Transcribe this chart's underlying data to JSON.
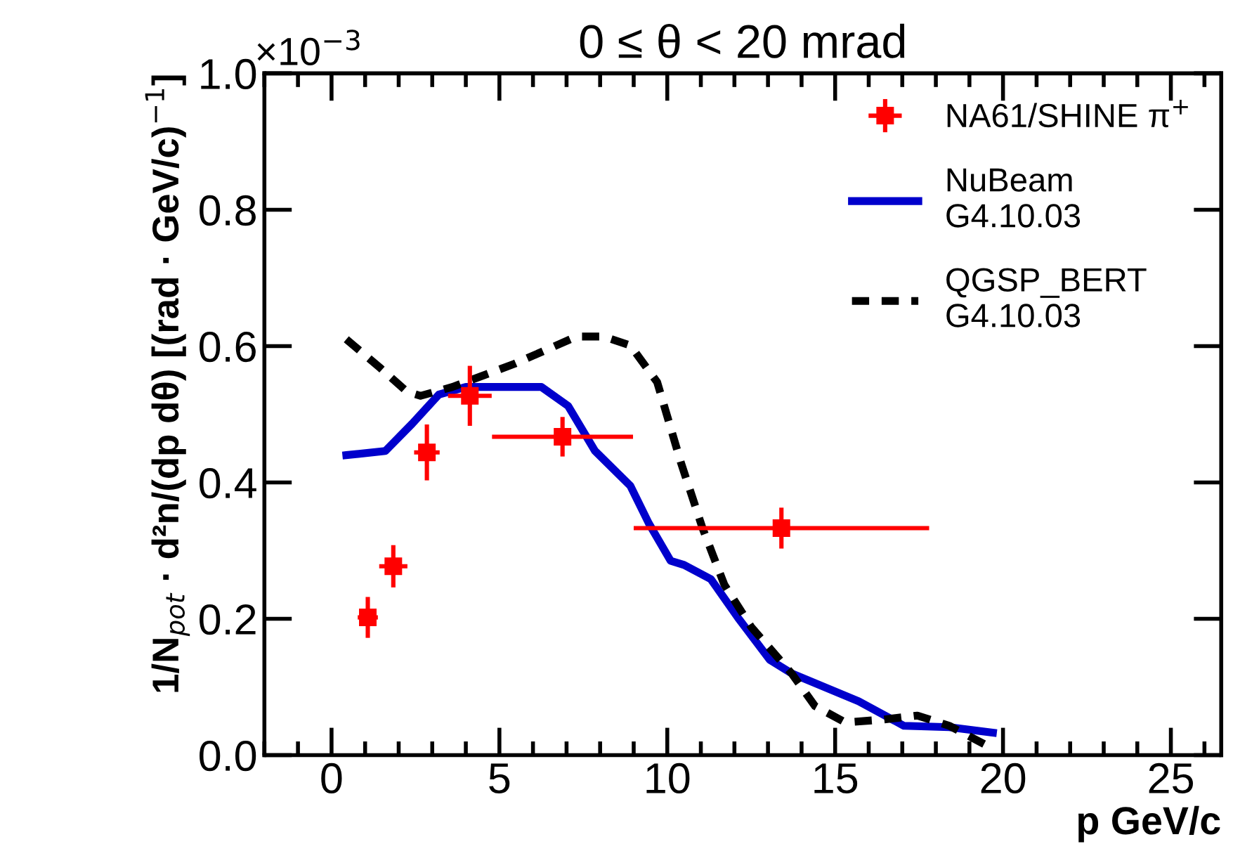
{
  "chart_data": {
    "type": "line",
    "title": "0 ≤ θ < 20 mrad",
    "xlabel": "p GeV/c",
    "ylabel": "1/N$_{pot}$ · d²n/(dp dθ) [(rad · GeV/c)$^{−1}$]",
    "annotations": [
      "×10$^{−3}$"
    ],
    "xlim": [
      -2,
      26.5
    ],
    "xticks": [
      0,
      5,
      10,
      15,
      20,
      25
    ],
    "ylim": [
      0,
      1
    ],
    "yticks": [
      {
        "value": 0,
        "label": "0.0"
      },
      {
        "value": 0.2,
        "label": "0.2"
      },
      {
        "value": 0.4,
        "label": "0.4"
      },
      {
        "value": 0.6,
        "label": "0.6"
      },
      {
        "value": 0.8,
        "label": "0.8"
      },
      {
        "value": 1,
        "label": "1.0"
      }
    ],
    "grid": false,
    "legend": "top right",
    "series": [
      {
        "name": "NA61/SHINE π$^{+}$",
        "type": "scatter",
        "color": "#ff0000",
        "marker": "square",
        "x": [
          1.08,
          1.84,
          2.84,
          4.12,
          6.88,
          13.4
        ],
        "values": [
          0.202,
          0.277,
          0.444,
          0.527,
          0.467,
          0.333
        ],
        "errors": [
          0.03,
          0.031,
          0.041,
          0.044,
          0.029,
          0.03
        ],
        "xerrors": [
          0.3,
          0.42,
          0.38,
          0.65,
          2.1,
          4.4
        ]
      },
      {
        "name": "NuBeam\nG4.10.03",
        "color": "#0000cc",
        "line_style": "solid",
        "x": [
          0.44,
          1.6,
          2.4,
          3.2,
          4.0,
          6.25,
          7.05,
          7.85,
          8.9,
          9.45,
          10.1,
          10.5,
          11.3,
          12.1,
          13.05,
          13.7,
          15.7,
          17.05,
          18.4,
          19.7
        ],
        "values": [
          0.44,
          0.446,
          0.486,
          0.529,
          0.54,
          0.54,
          0.512,
          0.446,
          0.395,
          0.34,
          0.285,
          0.279,
          0.258,
          0.202,
          0.14,
          0.12,
          0.079,
          0.043,
          0.041,
          0.033
        ]
      },
      {
        "name": "QGSP_BERT\nG4.10.03",
        "color": "#000000",
        "line_style": "dashed",
        "x": [
          0.44,
          1.45,
          2.25,
          2.65,
          3.6,
          5.45,
          7.3,
          8.1,
          8.9,
          9.7,
          10.4,
          11.05,
          11.7,
          12.5,
          13.7,
          14.4,
          15.3,
          16.4,
          17.45,
          18.4,
          19.6
        ],
        "values": [
          0.61,
          0.568,
          0.533,
          0.527,
          0.54,
          0.574,
          0.614,
          0.614,
          0.601,
          0.547,
          0.43,
          0.333,
          0.25,
          0.188,
          0.12,
          0.072,
          0.048,
          0.052,
          0.058,
          0.043,
          0.012
        ]
      }
    ]
  }
}
